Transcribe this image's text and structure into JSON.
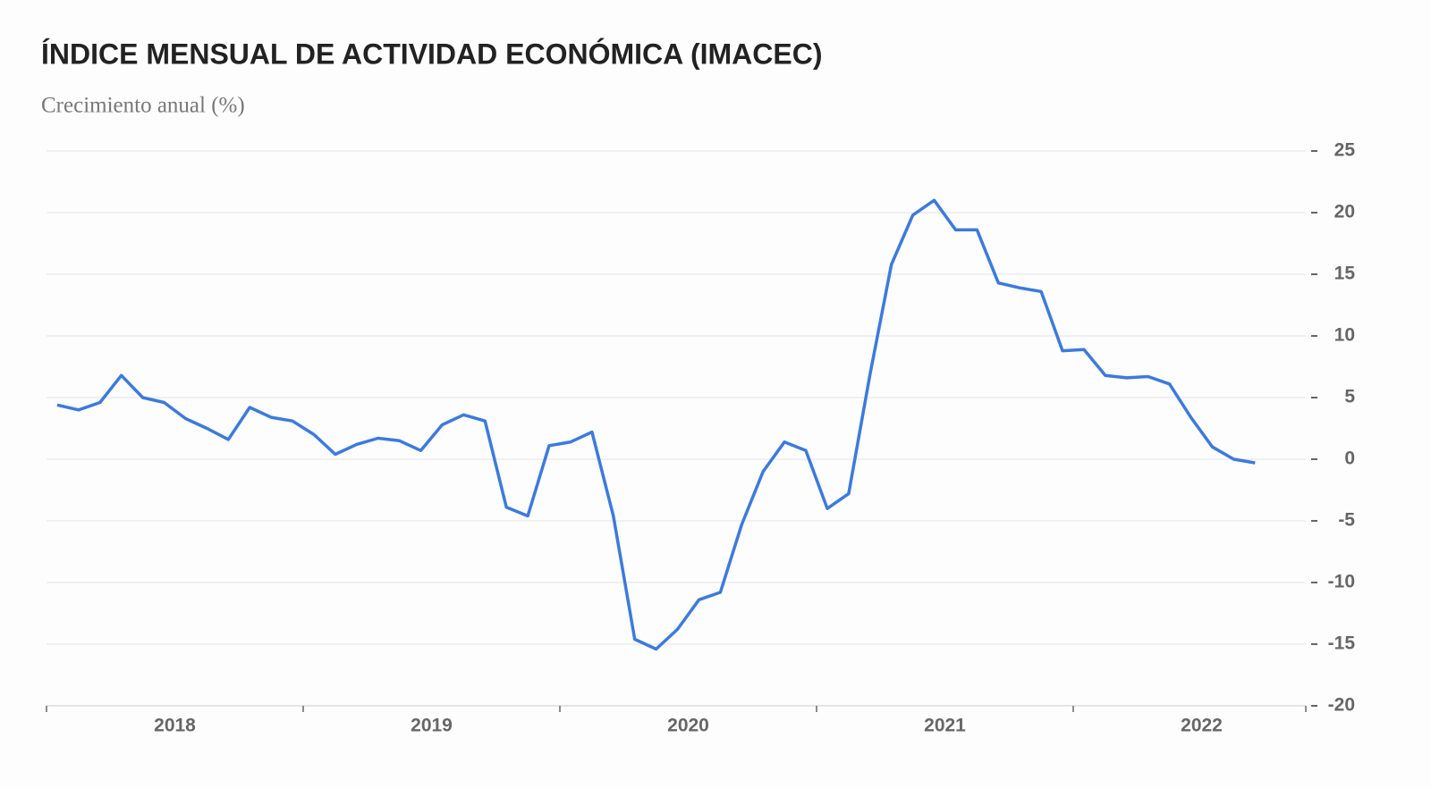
{
  "chart_data": {
    "type": "line",
    "title": "ÍNDICE MENSUAL DE ACTIVIDAD ECONÓMICA (IMACEC)",
    "subtitle": "Crecimiento anual (%)",
    "categories": [
      null,
      null,
      null,
      null,
      null,
      null,
      "2018",
      null,
      null,
      null,
      null,
      null,
      null,
      null,
      null,
      null,
      null,
      null,
      "2019",
      null,
      null,
      null,
      null,
      null,
      null,
      null,
      null,
      null,
      null,
      null,
      "2020",
      null,
      null,
      null,
      null,
      null,
      null,
      null,
      null,
      null,
      null,
      null,
      "2021",
      null,
      null,
      null,
      null,
      null,
      null,
      null,
      null,
      null,
      null,
      null,
      "2022",
      null,
      null
    ],
    "series": [
      {
        "name": "IMACEC",
        "color": "#3b7ae0",
        "values": [
          4.4,
          4.0,
          4.6,
          6.8,
          5.0,
          4.6,
          3.3,
          2.5,
          1.6,
          4.2,
          3.4,
          3.1,
          2.0,
          0.4,
          1.2,
          1.7,
          1.5,
          0.7,
          2.8,
          3.6,
          3.1,
          -3.9,
          -4.6,
          1.1,
          1.4,
          2.2,
          -4.6,
          -14.6,
          -15.4,
          -13.8,
          -11.4,
          -10.8,
          -5.3,
          -1.0,
          1.4,
          0.7,
          -4.0,
          -2.8,
          6.9,
          15.8,
          19.8,
          21.0,
          18.6,
          18.6,
          14.3,
          13.9,
          13.6,
          8.8,
          8.9,
          6.8,
          6.6,
          6.7,
          6.1,
          3.4,
          1.0,
          0.0,
          -0.3
        ]
      }
    ],
    "ylim": [
      -20,
      25
    ],
    "yticks": [
      -20,
      -15,
      -10,
      -5,
      0,
      5,
      10,
      15,
      20,
      25
    ],
    "grid": true
  }
}
